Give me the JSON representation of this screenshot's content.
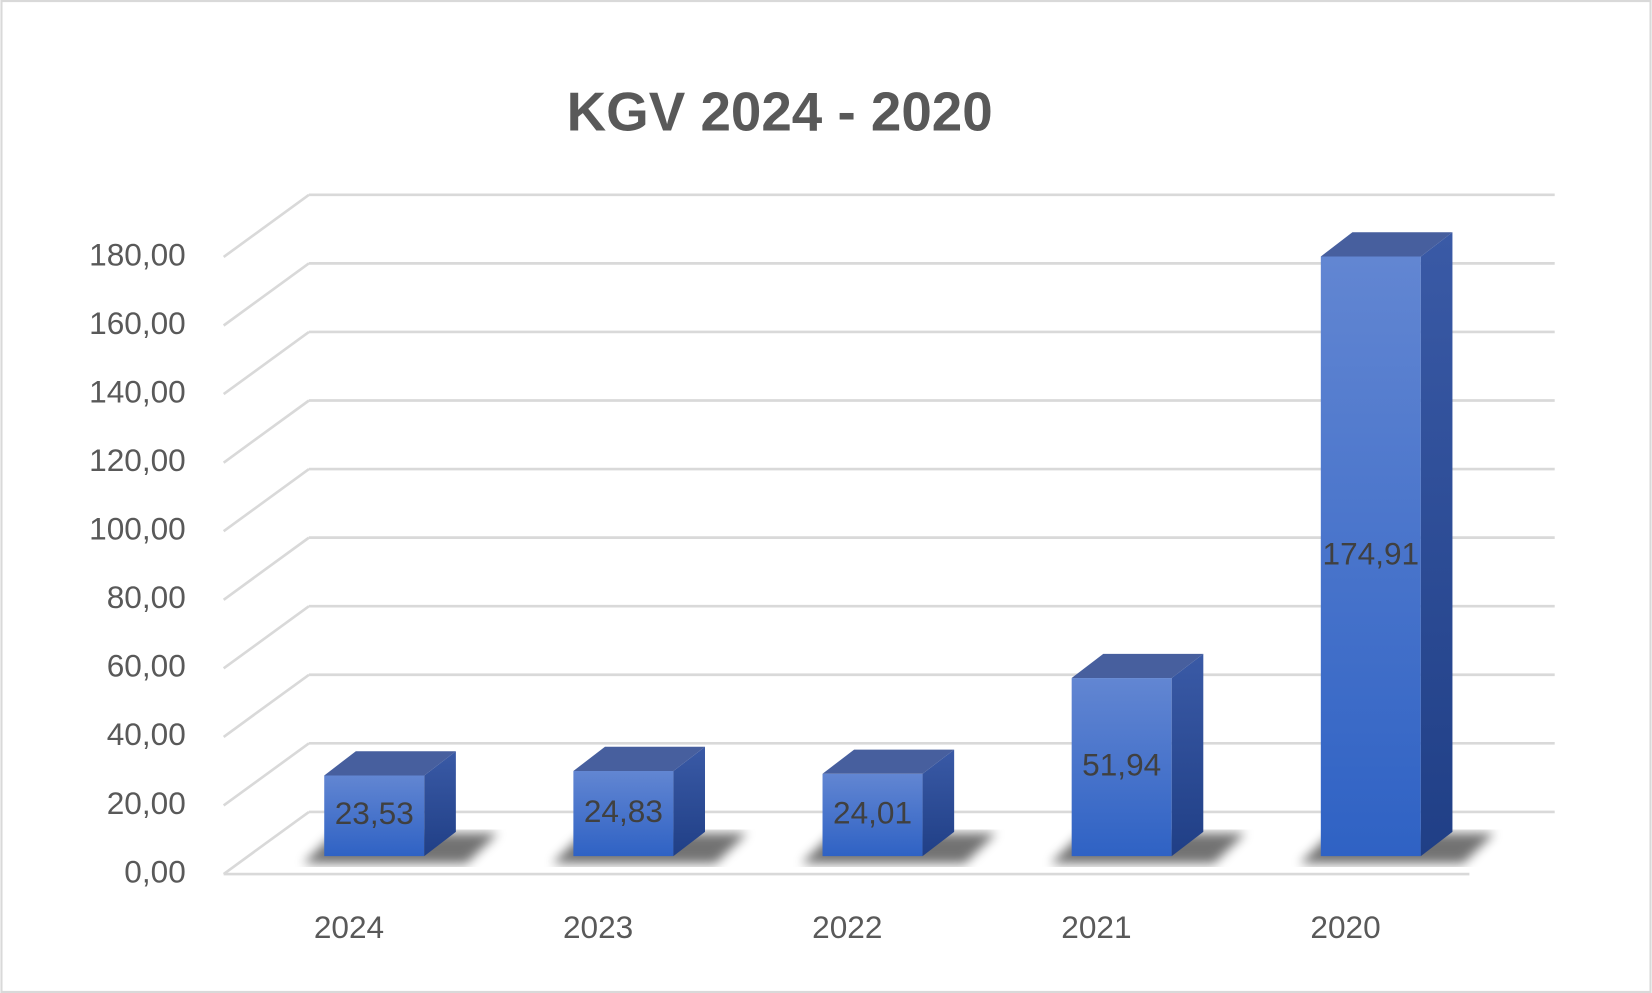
{
  "chart_data": {
    "type": "bar3d",
    "title": "KGV 2024 - 2020",
    "categories": [
      "2024",
      "2023",
      "2022",
      "2021",
      "2020"
    ],
    "values": [
      23.53,
      24.83,
      24.01,
      51.94,
      174.91
    ],
    "value_labels": [
      "23,53",
      "24,83",
      "24,01",
      "51,94",
      "174,91"
    ],
    "color": "#3a6ccb",
    "ylim": [
      0,
      180
    ],
    "yticks": [
      {
        "value": 0,
        "label": "0,00"
      },
      {
        "value": 20,
        "label": "20,00"
      },
      {
        "value": 40,
        "label": "40,00"
      },
      {
        "value": 60,
        "label": "60,00"
      },
      {
        "value": 80,
        "label": "80,00"
      },
      {
        "value": 100,
        "label": "100,00"
      },
      {
        "value": 120,
        "label": "120,00"
      },
      {
        "value": 140,
        "label": "140,00"
      },
      {
        "value": 160,
        "label": "160,00"
      },
      {
        "value": 180,
        "label": "180,00"
      }
    ],
    "grid": true
  }
}
